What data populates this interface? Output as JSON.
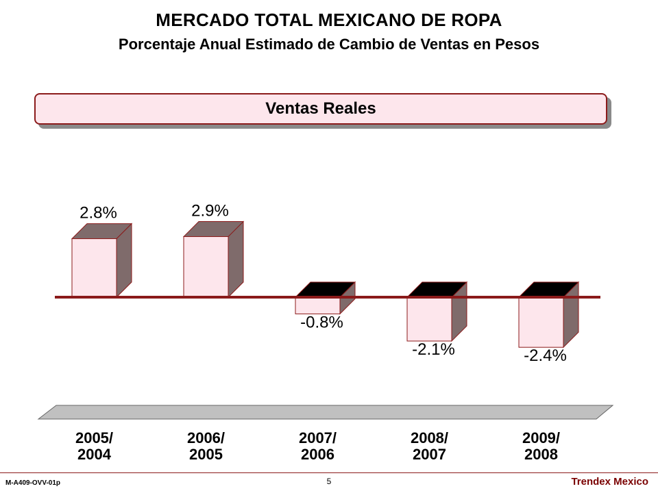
{
  "header": {
    "title": "MERCADO TOTAL MEXICANO DE ROPA",
    "subtitle": "Porcentaje Anual Estimado de Cambio de Ventas en Pesos"
  },
  "banner": {
    "label": "Ventas Reales"
  },
  "chart_data": {
    "type": "bar",
    "title": "Ventas Reales",
    "categories": [
      "2005/\n2004",
      "2006/\n2005",
      "2007/\n2006",
      "2008/\n2007",
      "2009/\n2008"
    ],
    "values": [
      2.8,
      2.9,
      -0.8,
      -2.1,
      -2.4
    ],
    "value_labels": [
      "2.8%",
      "2.9%",
      "-0.8%",
      "-2.1%",
      "-2.4%"
    ],
    "xlabel": "",
    "ylabel": "",
    "ylim": [
      -3.0,
      3.5
    ],
    "grid": false,
    "style": "3d",
    "colors": {
      "bar_face": "#fde6ec",
      "bar_side": "#7f6b6b",
      "bar_edge": "#8b1a1a",
      "bar_top_negative": "#000000",
      "baseline": "#8b1a1a",
      "floor": "#c0c0c0"
    }
  },
  "footer": {
    "code": "M-A409-OVV-01p",
    "page": "5",
    "brand": "Trendex Mexico"
  }
}
